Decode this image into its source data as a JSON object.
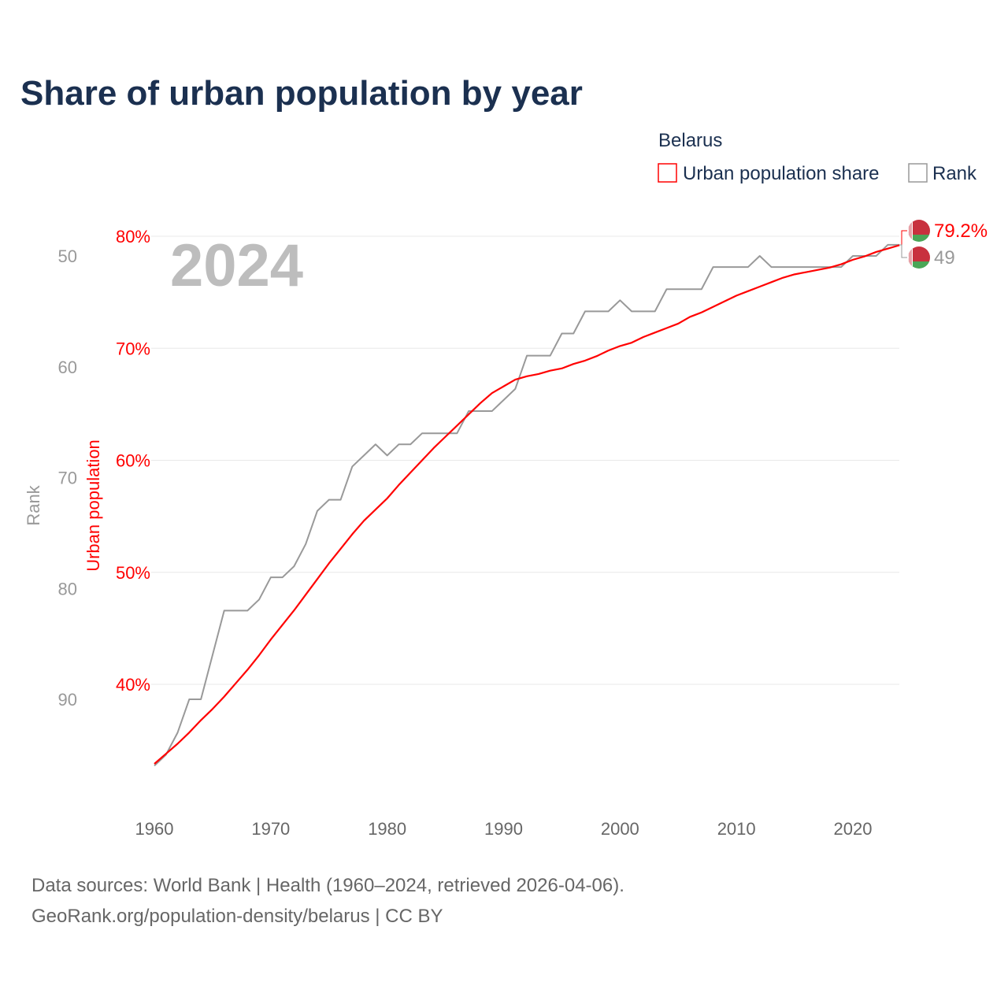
{
  "title": "Share of urban population by year",
  "legend": {
    "group": "Belarus",
    "items": [
      {
        "label": "Urban population share",
        "color": "#ff0000"
      },
      {
        "label": "Rank",
        "color": "#999999"
      }
    ]
  },
  "year_watermark": "2024",
  "footer": {
    "line1": "Data sources: World Bank | Health (1960–2024, retrieved 2026-04-06).",
    "line2": "GeoRank.org/population-density/belarus | CC BY"
  },
  "chart_data": {
    "type": "line",
    "title": "Share of urban population by year",
    "xlabel": "",
    "ylabel_left_outer": "Rank",
    "ylabel_left_inner": "Urban population",
    "x_ticks": [
      1960,
      1970,
      1980,
      1990,
      2000,
      2010,
      2020
    ],
    "urban_ticks": [
      {
        "v": 80,
        "label": "80%"
      },
      {
        "v": 70,
        "label": "70%"
      },
      {
        "v": 60,
        "label": "60%"
      },
      {
        "v": 50,
        "label": "50%"
      },
      {
        "v": 40,
        "label": "40%"
      }
    ],
    "rank_ticks": [
      {
        "v": 50,
        "label": "50"
      },
      {
        "v": 60,
        "label": "60"
      },
      {
        "v": 70,
        "label": "70"
      },
      {
        "v": 80,
        "label": "80"
      },
      {
        "v": 90,
        "label": "90"
      }
    ],
    "rank_axis_inverted": true,
    "grid": true,
    "legend_position": "top-right",
    "x": [
      1960,
      1961,
      1962,
      1963,
      1964,
      1965,
      1966,
      1967,
      1968,
      1969,
      1970,
      1971,
      1972,
      1973,
      1974,
      1975,
      1976,
      1977,
      1978,
      1979,
      1980,
      1981,
      1982,
      1983,
      1984,
      1985,
      1986,
      1987,
      1988,
      1989,
      1990,
      1991,
      1992,
      1993,
      1994,
      1995,
      1996,
      1997,
      1998,
      1999,
      2000,
      2001,
      2002,
      2003,
      2004,
      2005,
      2006,
      2007,
      2008,
      2009,
      2010,
      2011,
      2012,
      2013,
      2014,
      2015,
      2016,
      2017,
      2018,
      2019,
      2020,
      2021,
      2022,
      2023,
      2024
    ],
    "series": [
      {
        "name": "Urban population share",
        "unit": "%",
        "color": "#ff0000",
        "values": [
          32.9,
          33.8,
          34.7,
          35.7,
          36.8,
          37.8,
          38.9,
          40.1,
          41.3,
          42.6,
          44.0,
          45.3,
          46.6,
          48.0,
          49.4,
          50.8,
          52.1,
          53.4,
          54.6,
          55.6,
          56.6,
          57.8,
          58.9,
          60.0,
          61.1,
          62.1,
          63.1,
          64.1,
          65.1,
          66.0,
          66.6,
          67.2,
          67.5,
          67.7,
          68.0,
          68.2,
          68.6,
          68.9,
          69.3,
          69.8,
          70.2,
          70.5,
          71.0,
          71.4,
          71.8,
          72.2,
          72.8,
          73.2,
          73.7,
          74.2,
          74.7,
          75.1,
          75.5,
          75.9,
          76.3,
          76.6,
          76.8,
          77.0,
          77.2,
          77.5,
          77.9,
          78.2,
          78.6,
          78.9,
          79.2
        ],
        "end_label": "79.2%"
      },
      {
        "name": "Rank",
        "color": "#999999",
        "values": [
          96,
          95,
          93,
          90,
          90,
          86,
          82,
          82,
          82,
          81,
          79,
          79,
          78,
          76,
          73,
          72,
          72,
          69,
          68,
          67,
          68,
          67,
          67,
          66,
          66,
          66,
          66,
          64,
          64,
          64,
          63,
          62,
          59,
          59,
          59,
          57,
          57,
          55,
          55,
          55,
          54,
          55,
          55,
          55,
          53,
          53,
          53,
          53,
          51,
          51,
          51,
          51,
          50,
          51,
          51,
          51,
          51,
          51,
          51,
          51,
          50,
          50,
          50,
          49,
          49
        ],
        "end_label": "49"
      }
    ]
  }
}
